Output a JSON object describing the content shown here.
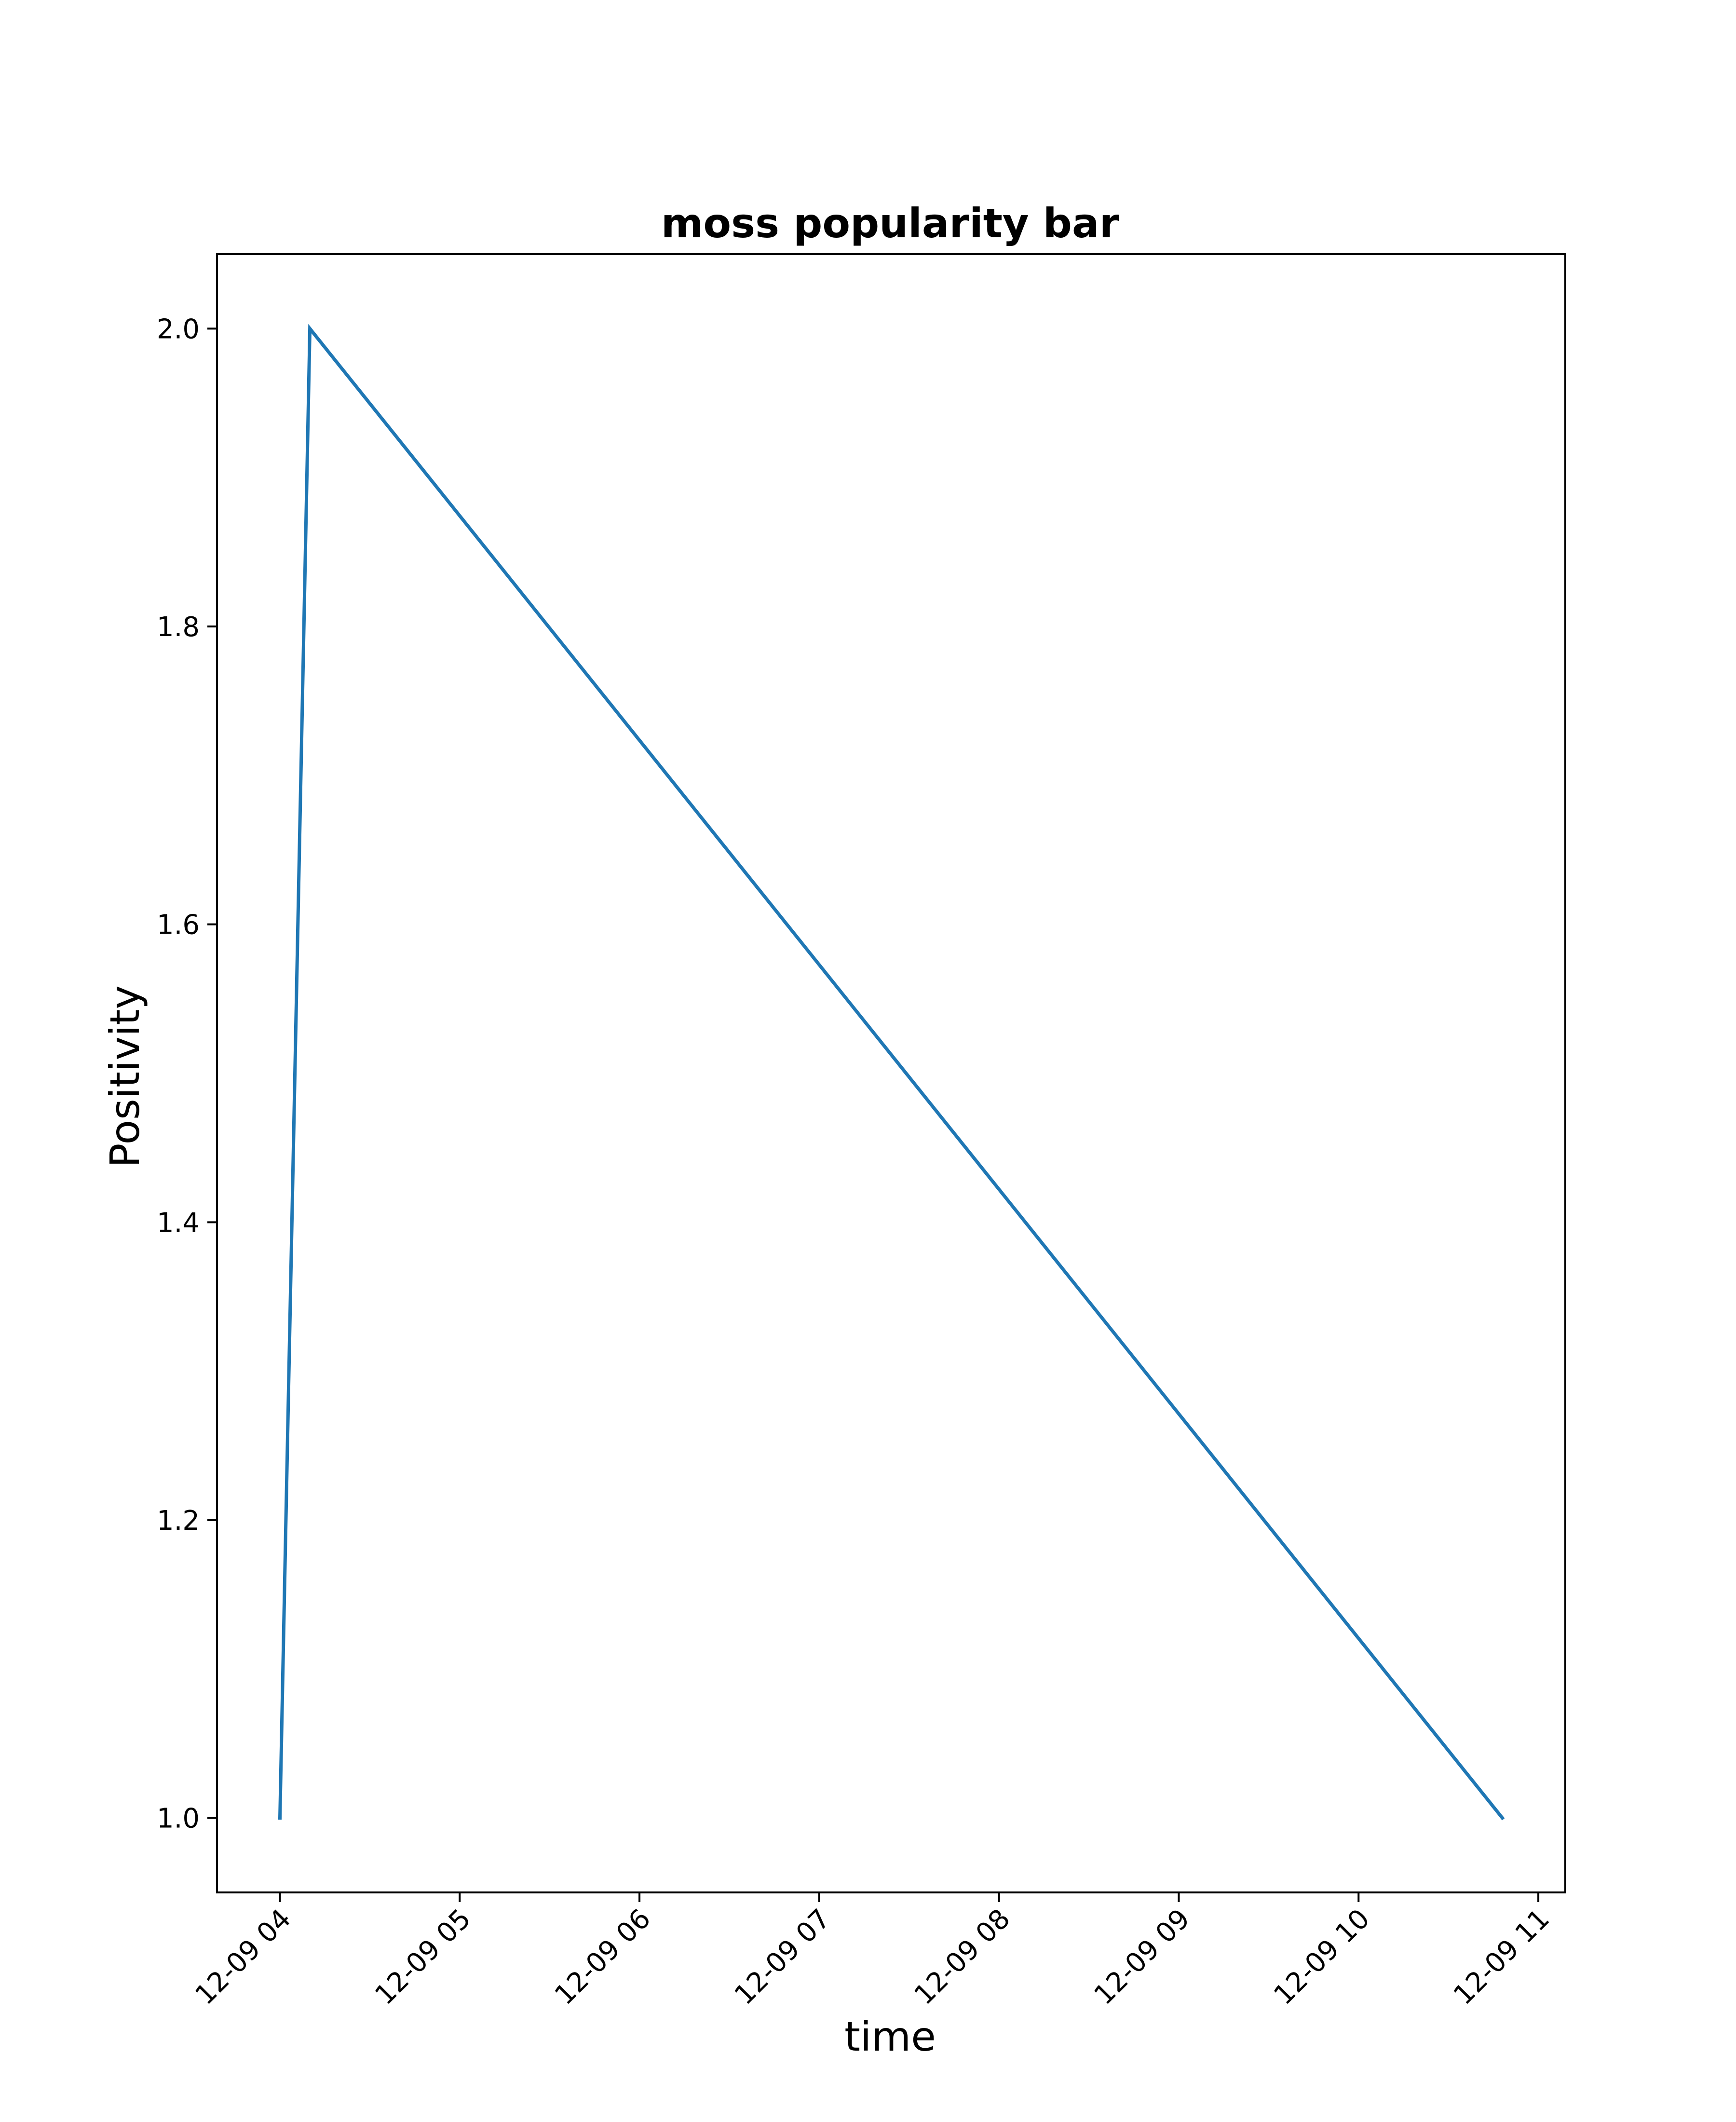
{
  "chart_data": {
    "type": "line",
    "title": "moss popularity bar",
    "xlabel": "time",
    "ylabel": "Positivity",
    "x_ticks": [
      {
        "value": "2018-12-09T04:00",
        "label": "12-09 04"
      },
      {
        "value": "2018-12-09T05:00",
        "label": "12-09 05"
      },
      {
        "value": "2018-12-09T06:00",
        "label": "12-09 06"
      },
      {
        "value": "2018-12-09T07:00",
        "label": "12-09 07"
      },
      {
        "value": "2018-12-09T08:00",
        "label": "12-09 08"
      },
      {
        "value": "2018-12-09T09:00",
        "label": "12-09 09"
      },
      {
        "value": "2018-12-09T10:00",
        "label": "12-09 10"
      },
      {
        "value": "2018-12-09T11:00",
        "label": "12-09 11"
      }
    ],
    "y_ticks": [
      {
        "value": 1.0,
        "label": "1.0"
      },
      {
        "value": 1.2,
        "label": "1.2"
      },
      {
        "value": 1.4,
        "label": "1.4"
      },
      {
        "value": 1.6,
        "label": "1.6"
      },
      {
        "value": 1.8,
        "label": "1.8"
      },
      {
        "value": 2.0,
        "label": "2.0"
      }
    ],
    "xlim": [
      "2018-12-09T03:39",
      "2018-12-09T11:09"
    ],
    "ylim": [
      0.95,
      2.05
    ],
    "grid": false,
    "series": [
      {
        "color": "#1f77b4",
        "points": [
          {
            "x": "2018-12-09T04:00",
            "y": 1.0
          },
          {
            "x": "2018-12-09T04:10",
            "y": 2.0
          },
          {
            "x": "2018-12-09T10:48",
            "y": 1.0
          }
        ]
      }
    ]
  }
}
